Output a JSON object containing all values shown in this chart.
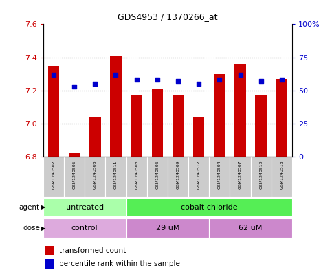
{
  "title": "GDS4953 / 1370266_at",
  "samples": [
    "GSM1240502",
    "GSM1240505",
    "GSM1240508",
    "GSM1240511",
    "GSM1240503",
    "GSM1240506",
    "GSM1240509",
    "GSM1240512",
    "GSM1240504",
    "GSM1240507",
    "GSM1240510",
    "GSM1240513"
  ],
  "bar_values": [
    7.35,
    6.82,
    7.04,
    7.41,
    7.17,
    7.21,
    7.17,
    7.04,
    7.3,
    7.36,
    7.17,
    7.27
  ],
  "dot_values": [
    62,
    53,
    55,
    62,
    58,
    58,
    57,
    55,
    58,
    62,
    57,
    58
  ],
  "ymin": 6.8,
  "ymax": 7.6,
  "y_ticks": [
    6.8,
    7.0,
    7.2,
    7.4,
    7.6
  ],
  "y2min": 0,
  "y2max": 100,
  "y2_ticks": [
    0,
    25,
    50,
    75,
    100
  ],
  "bar_color": "#cc0000",
  "dot_color": "#0000cc",
  "bar_bottom": 6.8,
  "agent_labels": [
    "untreated",
    "cobalt chloride"
  ],
  "agent_color_untreated": "#aaffaa",
  "agent_color_cobalt": "#55ee55",
  "dose_labels": [
    "control",
    "29 uM",
    "62 uM"
  ],
  "dose_color_control": "#ddaadd",
  "dose_color_29uM": "#cc88cc",
  "dose_color_62uM": "#cc88cc",
  "sample_box_color": "#cccccc",
  "left_label_color": "#cc0000",
  "right_label_color": "#0000cc",
  "legend_bar_label": "transformed count",
  "legend_dot_label": "percentile rank within the sample"
}
